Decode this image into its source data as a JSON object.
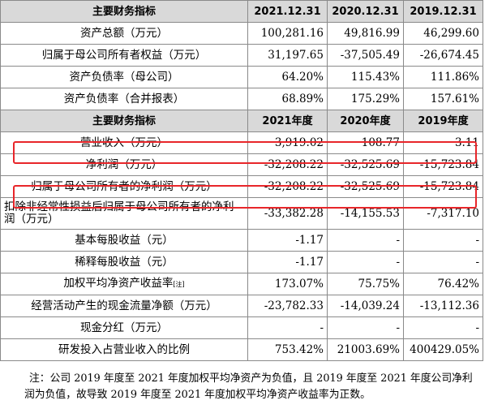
{
  "table": {
    "header1": [
      "主要财务指标",
      "2021.12.31",
      "2020.12.31",
      "2019.12.31"
    ],
    "rows1": [
      {
        "label": "资产总额（万元）",
        "values": [
          "100,281.16",
          "49,816.99",
          "46,299.60"
        ]
      },
      {
        "label": "归属于母公司所有者权益（万元）",
        "values": [
          "31,197.65",
          "-37,505.49",
          "-26,674.45"
        ]
      },
      {
        "label": "资产负债率（母公司）",
        "values": [
          "64.20%",
          "115.43%",
          "111.86%"
        ]
      },
      {
        "label": "资产负债率（合并报表）",
        "values": [
          "68.89%",
          "175.29%",
          "157.61%"
        ]
      }
    ],
    "header2": [
      "主要财务指标",
      "2021年度",
      "2020年度",
      "2019年度"
    ],
    "rows2": [
      {
        "label": "营业收入（万元）",
        "values": [
          "3,919.02",
          "108.77",
          "3.11"
        ],
        "highlighted": true
      },
      {
        "label": "净利润（万元）",
        "values": [
          "-32,208.22",
          "-32,525.69",
          "-15,723.84"
        ]
      },
      {
        "label": "归属于母公司所有者的净利润（万元）",
        "values": [
          "-32,208.22",
          "-32,525.69",
          "-15,723.84"
        ],
        "highlighted": true
      },
      {
        "label": "扣除非经常性损益后归属于母公司所有者的净利润（万元）",
        "values": [
          "-33,382.28",
          "-14,155.53",
          "-7,317.10"
        ]
      },
      {
        "label": "基本每股收益（元）",
        "values": [
          "-1.17",
          "-",
          "-"
        ]
      },
      {
        "label": "稀释每股收益（元）",
        "values": [
          "-1.17",
          "-",
          "-"
        ]
      },
      {
        "label": "加权平均净资产收益率",
        "label_note": "[注]",
        "values": [
          "173.07%",
          "75.75%",
          "76.42%"
        ]
      },
      {
        "label": "经营活动产生的现金流量净额（万元）",
        "values": [
          "-23,782.33",
          "-14,039.24",
          "-13,112.36"
        ]
      },
      {
        "label": "现金分红（万元）",
        "values": [
          "-",
          "-",
          "-"
        ]
      },
      {
        "label": "研发投入占营业收入的比例",
        "values": [
          "753.42%",
          "21003.69%",
          "400429.05%"
        ]
      }
    ]
  },
  "note": "注：公司 2019 年度至 2021 年度加权平均净资产为负值，且 2019 年度至 2021 年度公司净利润为负值，故导致 2019 年度至 2021 年度加权平均净资产收益率为正数。",
  "colors": {
    "header_bg": "#d9d9d9",
    "border": "#8a8a8a",
    "highlight": "#e8262a"
  }
}
